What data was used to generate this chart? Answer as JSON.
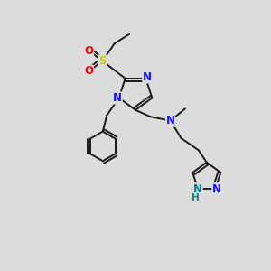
{
  "bg_color": "#dcdcdc",
  "bond_color": "#1a1a1a",
  "bond_width": 1.4,
  "N_color": "#1414ff",
  "S_color": "#cccc00",
  "O_color": "#ff0000",
  "NH_color": "#008080",
  "font_size": 8.5,
  "figsize": [
    3.0,
    3.0
  ],
  "dpi": 100,
  "xlim": [
    0,
    10
  ],
  "ylim": [
    0,
    10
  ]
}
